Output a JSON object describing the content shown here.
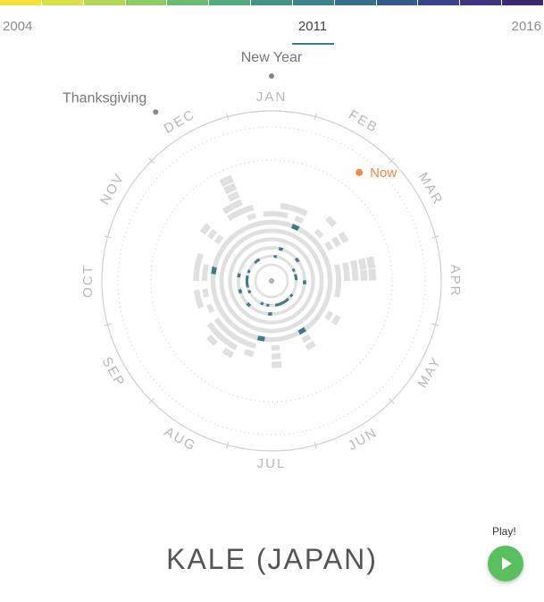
{
  "timeline": {
    "start_year": "2004",
    "end_year": "2016",
    "current_year": "2011",
    "gradient_colors": [
      "#f4e33a",
      "#d8e04a",
      "#b6d85a",
      "#8ecb66",
      "#6dbb74",
      "#55a97e",
      "#469584",
      "#3d8288",
      "#376f8a",
      "#36598b",
      "#3a4588",
      "#3e3480",
      "#3b2870"
    ]
  },
  "chart": {
    "months": [
      "JAN",
      "FEB",
      "MAR",
      "APR",
      "MAY",
      "JUN",
      "JUL",
      "AUG",
      "SEP",
      "OCT",
      "NOV",
      "DEC"
    ],
    "events": [
      {
        "label": "New Year",
        "month_position": 0.0,
        "color": "#888888"
      },
      {
        "label": "Thanksgiving",
        "month_position": 10.85,
        "color": "#888888"
      }
    ],
    "now": {
      "label": "Now",
      "month_position": 1.3,
      "color": "#f0894a"
    },
    "cell_color": "#e0e0e0",
    "highlight_color": "#3d7a8c"
  },
  "query": {
    "title": "KALE (JAPAN)"
  },
  "play": {
    "label": "Play!"
  }
}
